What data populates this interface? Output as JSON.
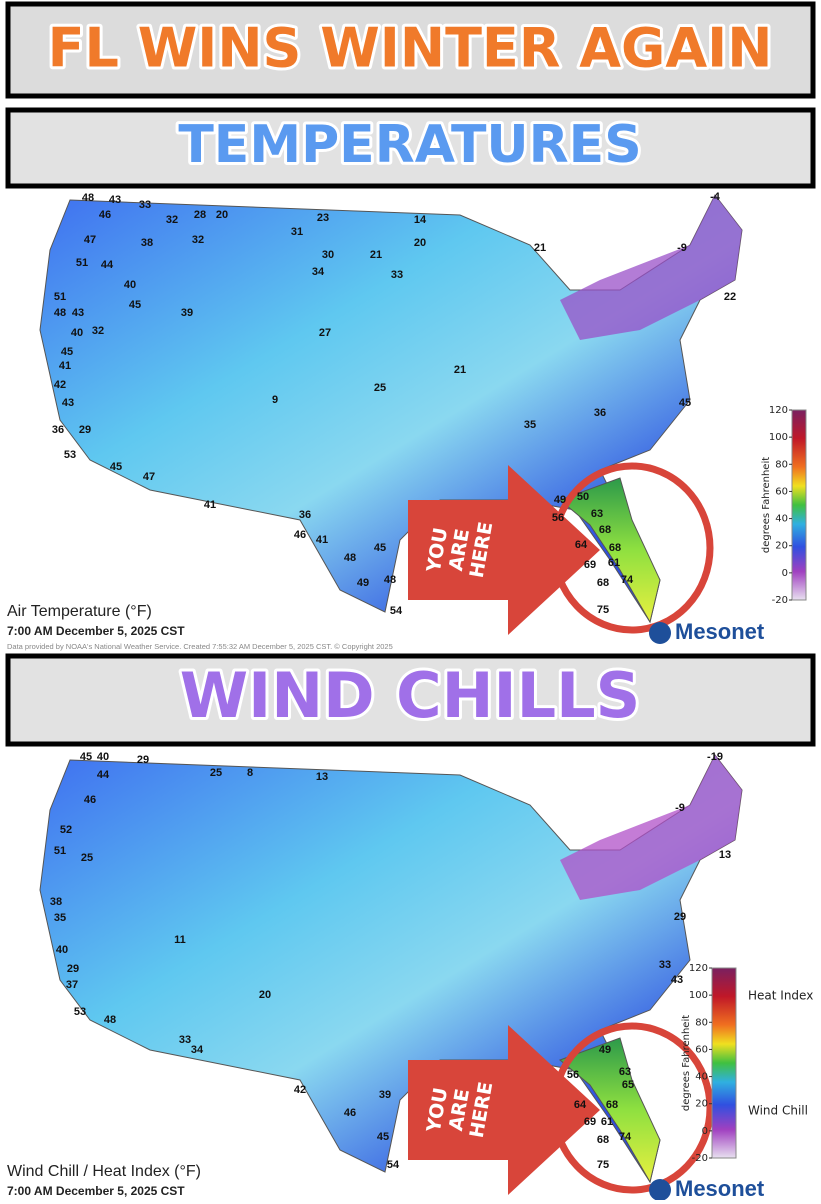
{
  "banner": {
    "title": "FL WINS WINTER AGAIN"
  },
  "temperatures": {
    "heading": "TEMPERATURES",
    "map": {
      "title": "Air Temperature (°F)",
      "time": "7:00 AM December 5, 2025 CST",
      "credit": "Data provided by NOAA's National Weather Service. Created 7:55:32 AM December 5, 2025 CST. © Copyright 2025",
      "callout": [
        "YOU",
        "ARE",
        "HERE"
      ],
      "logo": "Mesonet",
      "legend": {
        "label": "degrees Fahrenheit",
        "ticks": [
          120,
          100,
          80,
          60,
          40,
          20,
          0,
          -20
        ]
      },
      "stations": [
        48,
        43,
        33,
        46,
        32,
        28,
        20,
        23,
        14,
        47,
        38,
        32,
        31,
        30,
        21,
        20,
        21,
        51,
        44,
        40,
        45,
        39,
        34,
        33,
        51,
        48,
        43,
        40,
        32,
        45,
        27,
        25,
        21,
        41,
        42,
        43,
        9,
        36,
        29,
        53,
        45,
        47,
        41,
        36,
        46,
        41,
        48,
        45,
        49,
        48,
        54,
        -9,
        -4,
        22,
        45,
        35,
        36,
        49,
        50,
        63,
        56,
        68,
        64,
        68,
        69,
        61,
        74,
        68,
        75
      ]
    }
  },
  "wind_chills": {
    "heading": "WIND CHILLS",
    "map": {
      "title": "Wind Chill / Heat Index (°F)",
      "time": "7:00 AM December 5, 2025 CST",
      "callout": [
        "YOU",
        "ARE",
        "HERE"
      ],
      "logo": "Mesonet",
      "legend": {
        "label": "degrees Fahrenheit",
        "ticks": [
          120,
          100,
          80,
          60,
          40,
          20,
          0,
          -20
        ],
        "upper": "Heat Index",
        "lower": "Wind Chill"
      },
      "stations": [
        45,
        40,
        29,
        25,
        13,
        44,
        46,
        52,
        51,
        25,
        38,
        35,
        40,
        29,
        37,
        53,
        48,
        11,
        20,
        8,
        -19,
        -9,
        13,
        29,
        33,
        43,
        49,
        56,
        63,
        65,
        64,
        68,
        69,
        61,
        74,
        68,
        75,
        54,
        45,
        46,
        39,
        42,
        33,
        34
      ]
    }
  }
}
